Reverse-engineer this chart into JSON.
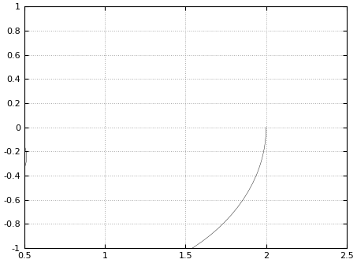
{
  "title": "",
  "xlim": [
    0.5,
    2.5
  ],
  "ylim": [
    -1.0,
    1.0
  ],
  "xticks": [
    0.5,
    1.0,
    1.5,
    2.0,
    2.5
  ],
  "yticks": [
    -1.0,
    -0.8,
    -0.6,
    -0.4,
    -0.2,
    0.0,
    0.2,
    0.4,
    0.6,
    0.8,
    1.0
  ],
  "grid_color": "#aaaaaa",
  "line_color": "#000000",
  "line_width": 0.3,
  "background_color": "#ffffff",
  "tau_d": 0.001,
  "T": 0.002,
  "omega_min_exp": -2,
  "omega_max_exp": 6,
  "num_points": 500000
}
